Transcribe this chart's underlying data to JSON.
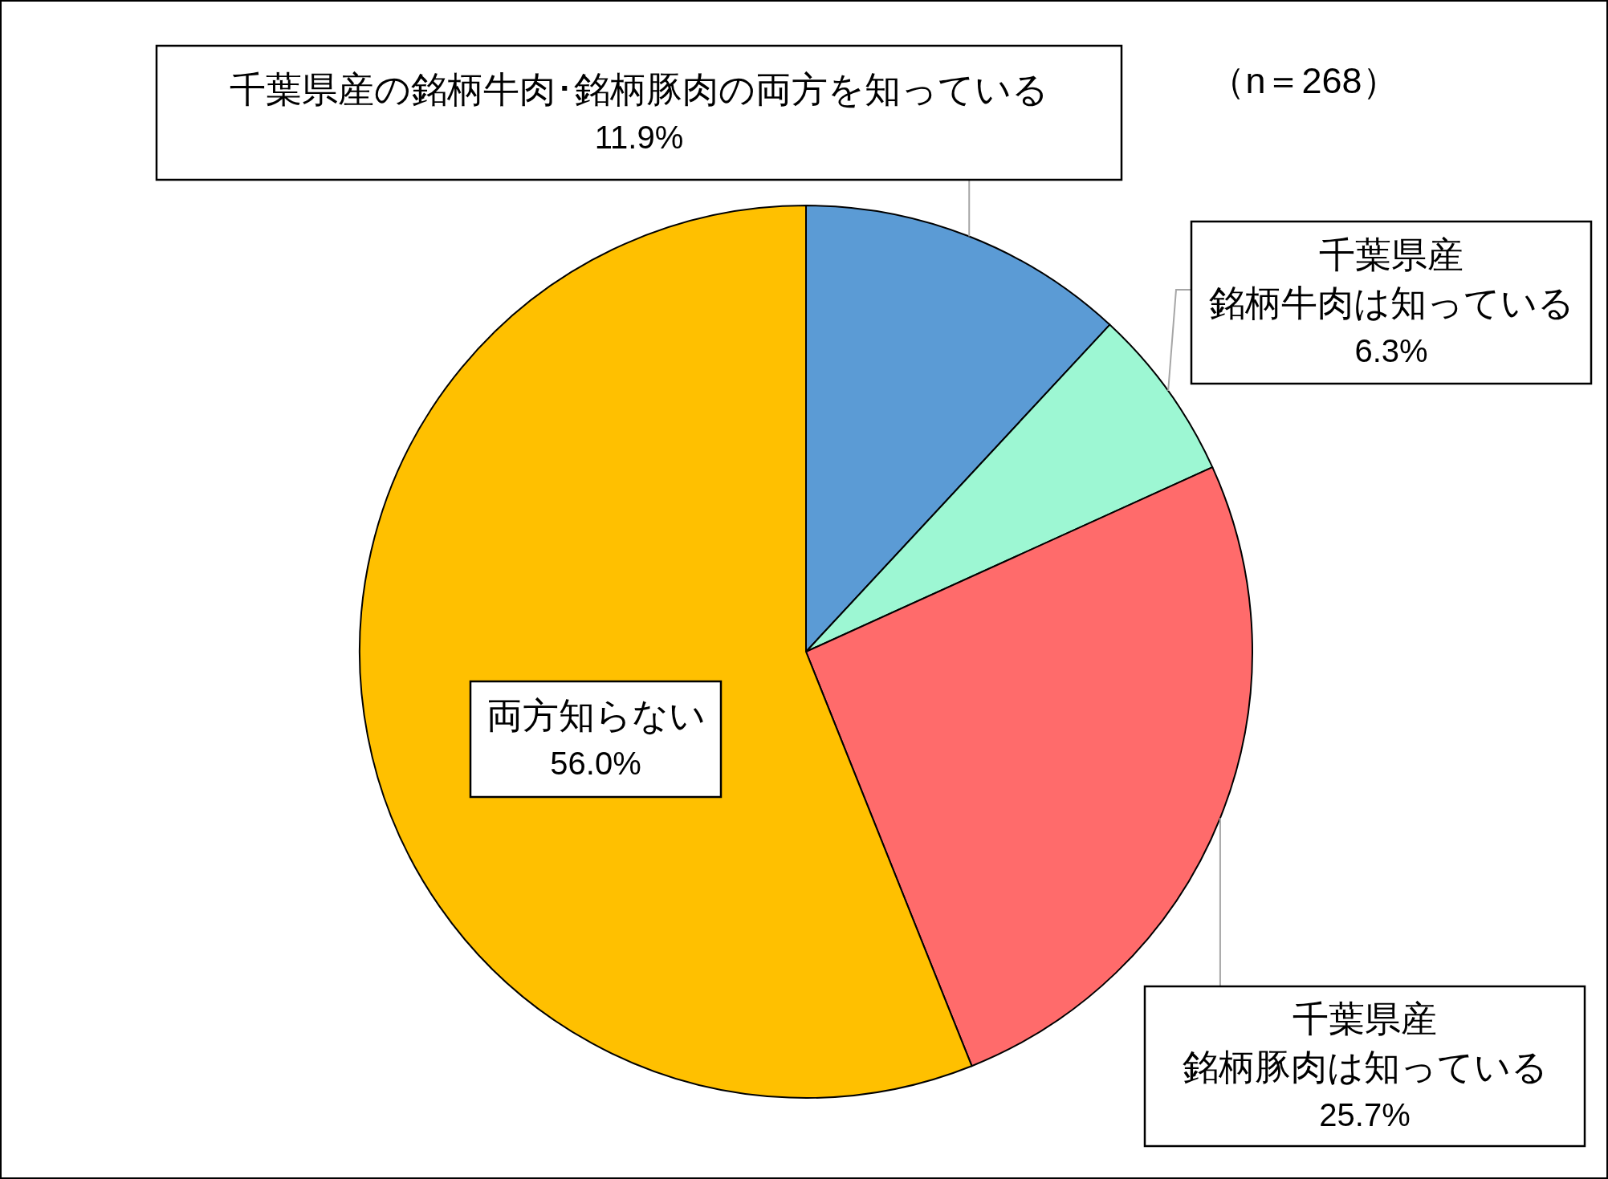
{
  "chart_data": {
    "type": "pie",
    "categories": [
      "千葉県産の銘柄牛肉･銘柄豚肉の両方を知っている",
      "千葉県産銘柄牛肉は知っている",
      "千葉県産銘柄豚肉は知っている",
      "両方知らない"
    ],
    "values": [
      11.9,
      6.3,
      25.7,
      56.0
    ],
    "value_labels": [
      "11.9%",
      "6.3%",
      "25.7%",
      "56.0%"
    ],
    "colors": [
      "#5b9bd5",
      "#9df7d3",
      "#ff6b6b",
      "#ffc000"
    ],
    "annotations": [
      "（n＝268）"
    ]
  }
}
